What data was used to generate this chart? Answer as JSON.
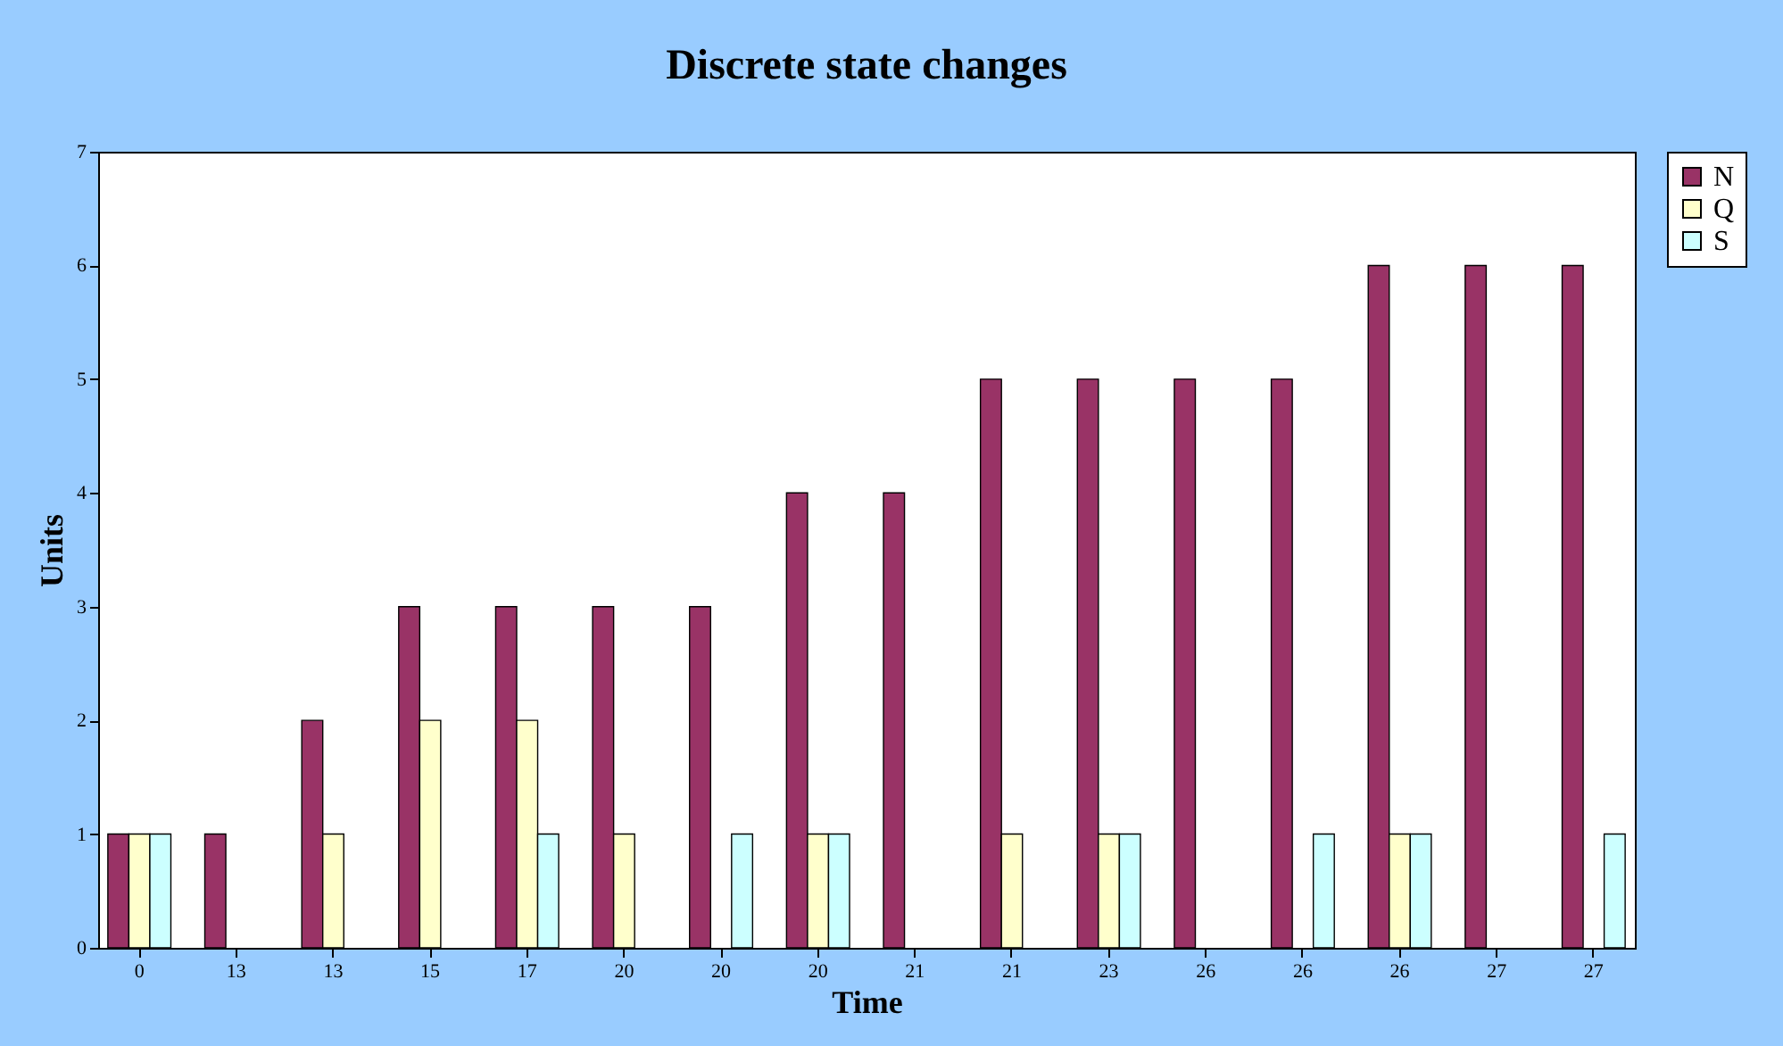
{
  "chart_data": {
    "type": "bar",
    "title": "Discrete state changes",
    "xlabel": "Time",
    "ylabel": "Units",
    "categories": [
      "0",
      "13",
      "13",
      "15",
      "17",
      "20",
      "20",
      "20",
      "21",
      "21",
      "23",
      "26",
      "26",
      "26",
      "27",
      "27"
    ],
    "series": [
      {
        "name": "N",
        "color": "#993366",
        "values": [
          1,
          1,
          2,
          3,
          3,
          3,
          3,
          4,
          4,
          5,
          5,
          5,
          5,
          6,
          6,
          6
        ]
      },
      {
        "name": "Q",
        "color": "#ffffcc",
        "values": [
          1,
          null,
          1,
          2,
          2,
          1,
          null,
          1,
          null,
          1,
          1,
          null,
          null,
          1,
          null,
          null
        ]
      },
      {
        "name": "S",
        "color": "#ccffff",
        "values": [
          1,
          null,
          null,
          null,
          1,
          null,
          1,
          1,
          null,
          null,
          1,
          null,
          1,
          1,
          null,
          1
        ]
      }
    ],
    "ylim": [
      0,
      7
    ],
    "yticks": [
      0,
      1,
      2,
      3,
      4,
      5,
      6,
      7
    ],
    "grid": false,
    "legend": "right"
  }
}
